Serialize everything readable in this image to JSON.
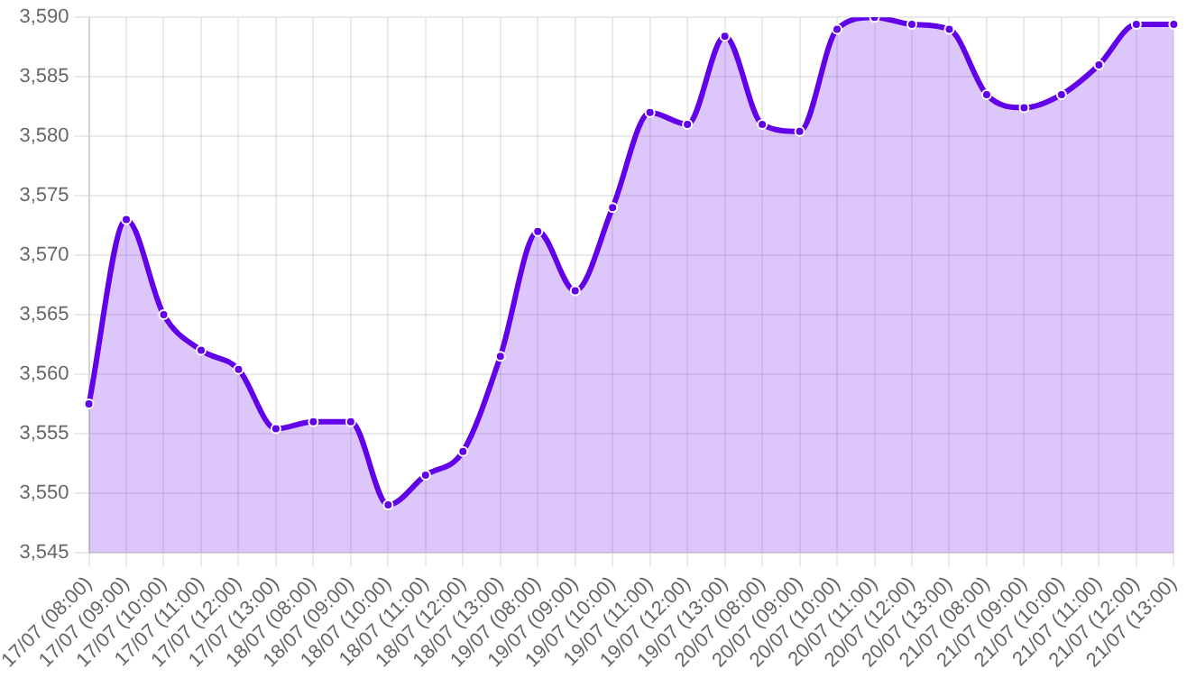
{
  "chart_data": {
    "type": "area",
    "categories": [
      "17/07 (08:00)",
      "17/07 (09:00)",
      "17/07 (10:00)",
      "17/07 (11:00)",
      "17/07 (12:00)",
      "17/07 (13:00)",
      "18/07 (08:00)",
      "18/07 (09:00)",
      "18/07 (10:00)",
      "18/07 (11:00)",
      "18/07 (12:00)",
      "18/07 (13:00)",
      "19/07 (08:00)",
      "19/07 (09:00)",
      "19/07 (10:00)",
      "19/07 (11:00)",
      "19/07 (12:00)",
      "19/07 (13:00)",
      "20/07 (08:00)",
      "20/07 (09:00)",
      "20/07 (10:00)",
      "20/07 (11:00)",
      "20/07 (12:00)",
      "20/07 (13:00)",
      "21/07 (08:00)",
      "21/07 (09:00)",
      "21/07 (10:00)",
      "21/07 (11:00)",
      "21/07 (12:00)",
      "21/07 (13:00)"
    ],
    "series": [
      {
        "color": "#6200ea",
        "values": [
          3557.5,
          3573,
          3565,
          3562,
          3560.4,
          3555.4,
          3556,
          3556,
          3549,
          3551.5,
          3553.5,
          3561.5,
          3572,
          3567,
          3574,
          3582,
          3581,
          3588.4,
          3581,
          3580.4,
          3589,
          3590,
          3589.4,
          3589,
          3583.5,
          3582.4,
          3583.5,
          3586,
          3589.4,
          3589.4
        ]
      }
    ],
    "ylim": [
      3545,
      3590
    ],
    "yticks": [
      {
        "value": 3545,
        "label": "3,545"
      },
      {
        "value": 3550,
        "label": "3,550"
      },
      {
        "value": 3555,
        "label": "3,555"
      },
      {
        "value": 3560,
        "label": "3,560"
      },
      {
        "value": 3565,
        "label": "3,565"
      },
      {
        "value": 3570,
        "label": "3,570"
      },
      {
        "value": 3575,
        "label": "3,575"
      },
      {
        "value": 3580,
        "label": "3,580"
      },
      {
        "value": 3585,
        "label": "3,585"
      },
      {
        "value": 3590,
        "label": "3,590"
      }
    ],
    "grid": true,
    "legend": false,
    "marker": "circle",
    "line_style": "solid"
  }
}
